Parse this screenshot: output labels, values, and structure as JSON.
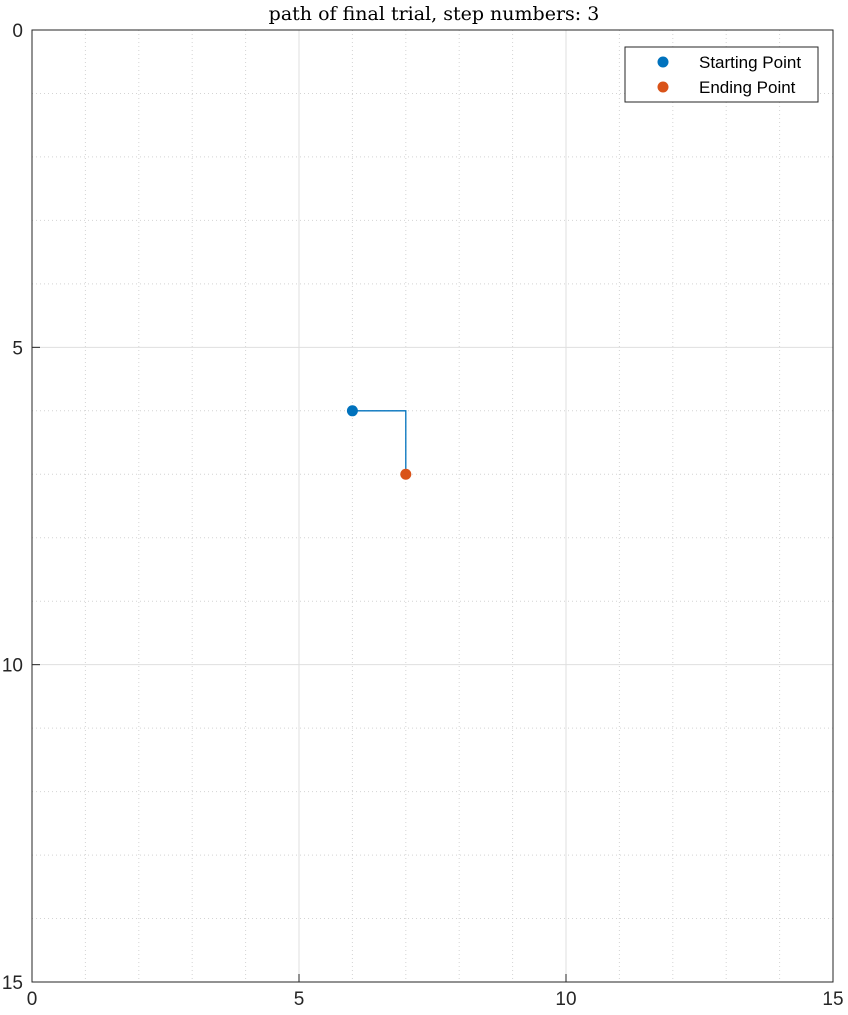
{
  "chart_data": {
    "type": "line",
    "title": "path of final trial, step numbers: 3",
    "xlabel": "",
    "ylabel": "",
    "xlim": [
      0,
      15
    ],
    "ylim": [
      0,
      15
    ],
    "y_reversed": true,
    "grid": true,
    "minor_grid": true,
    "x_ticks": [
      0,
      5,
      10,
      15
    ],
    "y_ticks": [
      0,
      5,
      10,
      15
    ],
    "x_tick_labels": [
      "0",
      "5",
      "10",
      "15"
    ],
    "y_tick_labels": [
      "0",
      "5",
      "10",
      "15"
    ],
    "path": {
      "color": "#0072BD",
      "points": [
        [
          6,
          6
        ],
        [
          7,
          6
        ],
        [
          7,
          7
        ]
      ]
    },
    "series": [
      {
        "name": "Starting Point",
        "x": [
          6
        ],
        "y": [
          6
        ],
        "color": "#0072BD",
        "marker": "circle"
      },
      {
        "name": "Ending Point",
        "x": [
          7
        ],
        "y": [
          7
        ],
        "color": "#D95319",
        "marker": "circle"
      }
    ],
    "legend_position": "top-right"
  }
}
